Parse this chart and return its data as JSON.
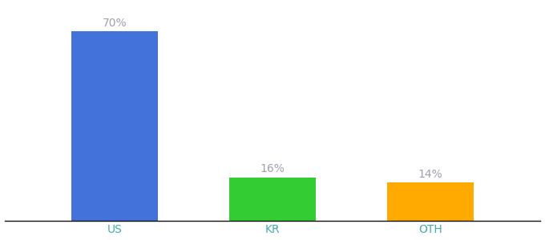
{
  "categories": [
    "US",
    "KR",
    "OTH"
  ],
  "values": [
    70,
    16,
    14
  ],
  "bar_colors": [
    "#4472db",
    "#33cc33",
    "#ffaa00"
  ],
  "labels": [
    "70%",
    "16%",
    "14%"
  ],
  "label_color": "#a0a0b0",
  "xlabel_color": "#44aaaa",
  "background_color": "#ffffff",
  "ylim": [
    0,
    80
  ],
  "bar_width": 0.55,
  "label_fontsize": 10,
  "xlabel_fontsize": 10,
  "x_positions": [
    1,
    2,
    3
  ],
  "xlim": [
    0.3,
    3.7
  ]
}
